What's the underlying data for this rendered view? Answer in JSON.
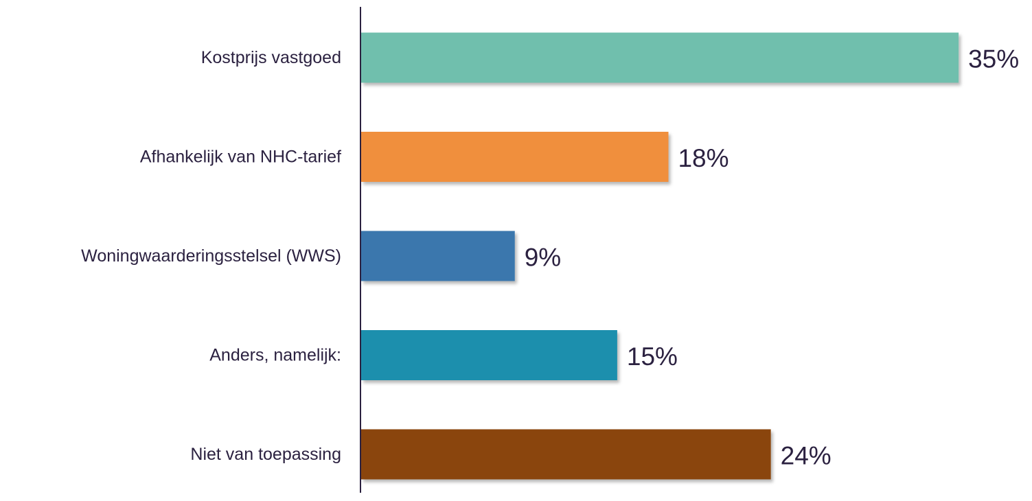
{
  "chart_data": {
    "type": "bar",
    "orientation": "horizontal",
    "categories": [
      "Kostprijs vastgoed",
      "Afhankelijk van NHC-tarief",
      "Woningwaarderingsstelsel (WWS)",
      "Anders, namelijk:",
      "Niet van toepassing"
    ],
    "values": [
      35,
      18,
      9,
      15,
      24
    ],
    "value_labels": [
      "35%",
      "18%",
      "9%",
      "15%",
      "24%"
    ],
    "colors": [
      "#70bfad",
      "#f08f3d",
      "#3b77ad",
      "#1e8fad",
      "#8a4408"
    ],
    "axis_color": "#2b2140",
    "title": "",
    "xlabel": "",
    "ylabel": "",
    "xlim": [
      0,
      35
    ],
    "grid": false,
    "legend": "none"
  }
}
